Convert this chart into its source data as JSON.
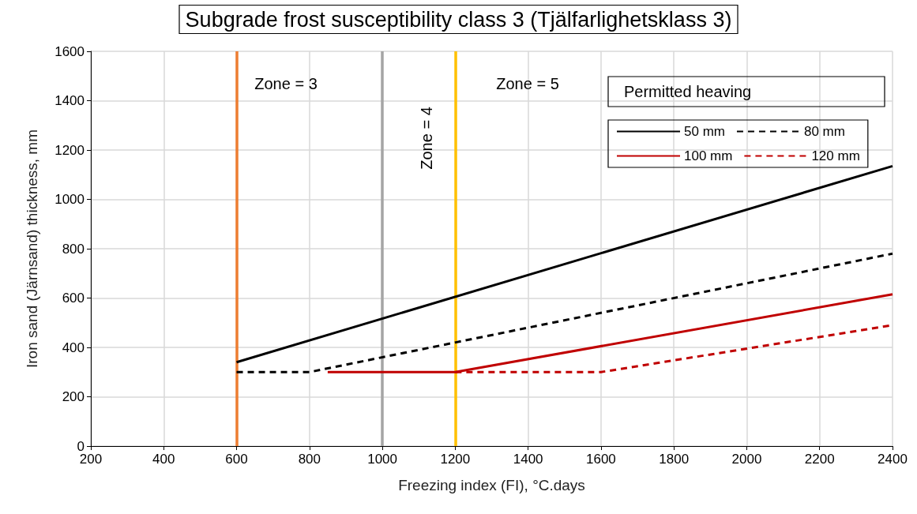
{
  "chart_data": {
    "type": "line",
    "title": "Subgrade frost susceptibility class 3 (Tjälfarlighetsklass 3)",
    "xlabel": "Freezing index (FI), °C.days",
    "ylabel": "Iron sand (Järnsand) thickness, mm",
    "legend_title": "Permitted heaving",
    "legend": "top right",
    "xlim": [
      200,
      2400
    ],
    "xticks": [
      200,
      400,
      600,
      800,
      1000,
      1200,
      1400,
      1600,
      1800,
      2000,
      2200,
      2400
    ],
    "ylim": [
      0,
      1600
    ],
    "yticks": [
      0,
      200,
      400,
      600,
      800,
      1000,
      1200,
      1400,
      1600
    ],
    "grid": true,
    "marker": "none",
    "series": [
      {
        "name": "50 mm",
        "color": "#000000",
        "line_style": "solid",
        "x": [
          600,
          2400
        ],
        "values": [
          340,
          1135
        ]
      },
      {
        "name": "80 mm",
        "color": "#000000",
        "line_style": "dashed",
        "x": [
          600,
          800,
          2400
        ],
        "values": [
          300,
          300,
          780
        ]
      },
      {
        "name": "100 mm",
        "color": "#c00000",
        "line_style": "solid",
        "x": [
          850,
          1200,
          2400
        ],
        "values": [
          300,
          300,
          615
        ]
      },
      {
        "name": "120 mm",
        "color": "#c00000",
        "line_style": "dashed",
        "x": [
          1200,
          1600,
          2400
        ],
        "values": [
          300,
          300,
          490
        ]
      }
    ],
    "ref_lines": [
      {
        "axis": "x",
        "value": 600,
        "color": "#ed7d31"
      },
      {
        "axis": "x",
        "value": 1000,
        "color": "#a5a5a5"
      },
      {
        "axis": "x",
        "value": 1200,
        "color": "#ffc000"
      }
    ],
    "annotations": [
      "Zone = 3",
      "Zone = 4",
      "Zone = 5"
    ]
  }
}
